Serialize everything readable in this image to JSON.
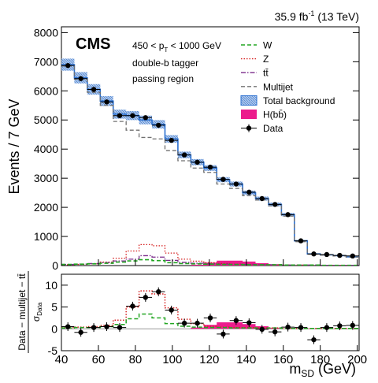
{
  "header": {
    "lumi_text": "35.9 fb",
    "lumi_exp": "-1",
    "lumi_suffix": " (13 TeV)"
  },
  "labels": {
    "cms": "CMS",
    "pt_cut_a": "450 < p",
    "pt_cut_sub": "T",
    "pt_cut_b": " < 1000 GeV",
    "tagger": "double-b tagger",
    "region": "passing region"
  },
  "legend": [
    {
      "key": "w",
      "label": "W",
      "style": "dashed",
      "color": "#22a622"
    },
    {
      "key": "z",
      "label": "Z",
      "style": "dotted",
      "color": "#d62020"
    },
    {
      "key": "tt",
      "label": "tt̄",
      "style": "dashdot",
      "color": "#7a2a8a"
    },
    {
      "key": "mj",
      "label": "Multijet",
      "style": "dashed",
      "color": "#707070"
    },
    {
      "key": "tot",
      "label": "Total background",
      "style": "band",
      "color": "#4a86d0"
    },
    {
      "key": "h",
      "label": "H(bb̄)",
      "style": "fill",
      "color": "#ec1c8c"
    },
    {
      "key": "data",
      "label": "Data",
      "style": "marker",
      "color": "#000000"
    }
  ],
  "chart_data": [
    {
      "type": "line",
      "title": "",
      "xlabel": "",
      "ylabel": "Events / 7 GeV",
      "xlim": [
        40,
        201
      ],
      "ylim": [
        0,
        8200
      ],
      "yticks": [
        0,
        1000,
        2000,
        3000,
        4000,
        5000,
        6000,
        7000,
        8000
      ],
      "bin_edges": [
        40,
        47,
        54,
        61,
        68,
        75,
        82,
        89,
        96,
        103,
        110,
        117,
        124,
        131,
        138,
        145,
        152,
        159,
        166,
        173,
        180,
        187,
        194,
        201
      ],
      "series": [
        {
          "name": "Total background",
          "values": [
            6900,
            6450,
            6050,
            5650,
            5200,
            5150,
            5000,
            4850,
            4350,
            3800,
            3550,
            3350,
            2950,
            2800,
            2500,
            2300,
            2100,
            1750,
            850,
            400,
            370,
            340,
            300
          ]
        },
        {
          "name": "Multijet",
          "values": [
            6850,
            6400,
            5950,
            5500,
            4950,
            4650,
            4400,
            4350,
            3950,
            3600,
            3350,
            3200,
            2800,
            2650,
            2400,
            2250,
            2050,
            1700,
            820,
            390,
            360,
            330,
            290
          ]
        },
        {
          "name": "Z",
          "values": [
            30,
            40,
            60,
            120,
            250,
            500,
            720,
            680,
            430,
            220,
            150,
            100,
            70,
            50,
            40,
            30,
            30,
            20,
            20,
            10,
            10,
            10,
            10
          ]
        },
        {
          "name": "W",
          "values": [
            40,
            50,
            60,
            80,
            120,
            160,
            200,
            170,
            100,
            70,
            60,
            50,
            40,
            40,
            30,
            30,
            30,
            20,
            20,
            20,
            10,
            10,
            10
          ]
        },
        {
          "name": "tt̄",
          "values": [
            40,
            50,
            70,
            100,
            160,
            220,
            340,
            290,
            180,
            110,
            80,
            60,
            50,
            40,
            40,
            30,
            30,
            20,
            20,
            20,
            10,
            10,
            10
          ]
        },
        {
          "name": "H(bb̄)",
          "values": [
            0,
            0,
            0,
            0,
            0,
            0,
            0,
            0,
            0,
            0,
            30,
            100,
            170,
            170,
            140,
            80,
            30,
            0,
            0,
            0,
            0,
            0,
            0
          ]
        },
        {
          "name": "Data",
          "values": [
            6870,
            6420,
            6050,
            5620,
            5150,
            5150,
            5080,
            4820,
            4300,
            3800,
            3550,
            3380,
            2960,
            2800,
            2520,
            2300,
            2100,
            1750,
            850,
            400,
            380,
            350,
            330
          ]
        }
      ]
    },
    {
      "type": "line",
      "title": "",
      "xlabel": "m_SD (GeV)",
      "ylabel": "Data − multijet − tt̄ / σ_Data",
      "xlim": [
        40,
        201
      ],
      "ylim": [
        -5,
        12.5
      ],
      "xticks": [
        40,
        60,
        80,
        100,
        120,
        140,
        160,
        180,
        200
      ],
      "yticks": [
        -5,
        0,
        5,
        10
      ],
      "bin_edges": [
        40,
        47,
        54,
        61,
        68,
        75,
        82,
        89,
        96,
        103,
        110,
        117,
        124,
        131,
        138,
        145,
        152,
        159,
        166,
        173,
        180,
        187,
        194,
        201
      ],
      "series": [
        {
          "name": "Z",
          "values": [
            0.3,
            0.4,
            0.5,
            0.8,
            2.0,
            5.0,
            8.7,
            8.0,
            4.8,
            2.2,
            1.2,
            0.6,
            0.4,
            0.3,
            0.3,
            0.2,
            0.2,
            0.1,
            0.1,
            0.1,
            0.1,
            0.1,
            0.1
          ]
        },
        {
          "name": "W",
          "values": [
            0.2,
            0.3,
            0.3,
            0.5,
            1.0,
            2.3,
            3.4,
            2.5,
            1.2,
            0.6,
            0.4,
            0.3,
            0.3,
            0.2,
            0.2,
            0.2,
            0.2,
            0.1,
            0.1,
            0.1,
            0.1,
            0.1,
            0.1
          ]
        },
        {
          "name": "H(bb̄)",
          "values": [
            0,
            0,
            0,
            0,
            0,
            0,
            0,
            0,
            0,
            0,
            0.3,
            0.9,
            1.5,
            1.5,
            1.1,
            0.6,
            0.2,
            0,
            0,
            0,
            0,
            0,
            0
          ]
        },
        {
          "name": "Data",
          "values": [
            0.5,
            -0.8,
            0.3,
            0.5,
            0.3,
            5.2,
            7.2,
            8.5,
            4.3,
            1.3,
            1.3,
            2.5,
            -1.2,
            1.9,
            1.4,
            -0.1,
            -0.7,
            0.4,
            0.3,
            -2.5,
            0.3,
            0.7,
            0.8
          ]
        }
      ]
    }
  ]
}
